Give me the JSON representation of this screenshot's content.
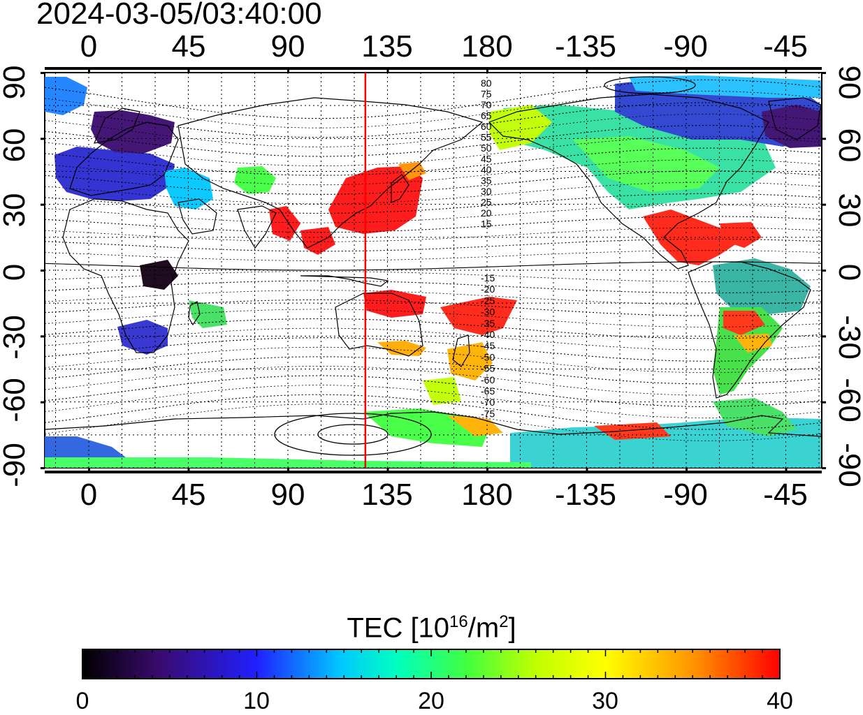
{
  "title": "2024-03-05/03:40:00",
  "x_ticks_top": [
    "0",
    "45",
    "90",
    "135",
    "180",
    "-135",
    "-90",
    "-45"
  ],
  "x_ticks_bottom": [
    "0",
    "45",
    "90",
    "135",
    "180",
    "-135",
    "-90",
    "-45"
  ],
  "y_ticks_left": [
    "90",
    "60",
    "30",
    "0",
    "-30",
    "-60",
    "-90"
  ],
  "y_ticks_right": [
    "90",
    "60",
    "30",
    "0",
    "-30",
    "-60",
    "-90"
  ],
  "contour_labels_north": [
    "80",
    "75",
    "70",
    "65",
    "60",
    "55",
    "50",
    "45",
    "40",
    "35",
    "30",
    "25",
    "20",
    "15"
  ],
  "contour_labels_south": [
    "-15",
    "-20",
    "-25",
    "-30",
    "-35",
    "-40",
    "-45",
    "-50",
    "-55",
    "-60",
    "-65",
    "-70",
    "-75"
  ],
  "colorbar": {
    "title_prefix": "TEC  [10",
    "title_exp1": "16",
    "title_mid": "/m",
    "title_exp2": "2",
    "title_suffix": "]",
    "ticks": [
      "0",
      "10",
      "20",
      "30",
      "40"
    ],
    "min": 0,
    "max": 40,
    "colors": [
      "#000000",
      "#3a0a6e",
      "#2020ff",
      "#00c8ff",
      "#00ffc0",
      "#40ff40",
      "#c0ff00",
      "#ffff00",
      "#ff9000",
      "#ff0000"
    ]
  },
  "terminator_longitude": 125,
  "line_color": "#ff0000"
}
